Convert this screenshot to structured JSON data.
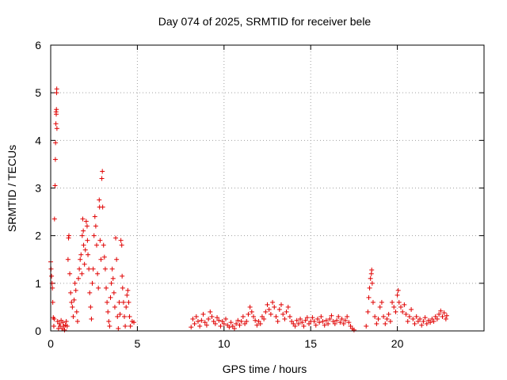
{
  "chart_data": {
    "type": "scatter",
    "title": "Day 074 of 2025, SRMTID for receiver bele",
    "xlabel": "GPS time / hours",
    "ylabel": "SRMTID / TECUs",
    "xlim": [
      0,
      25
    ],
    "ylim": [
      0,
      6
    ],
    "xticks": [
      0,
      5,
      10,
      15,
      20
    ],
    "yticks": [
      0,
      1,
      2,
      3,
      4,
      5,
      6
    ],
    "grid": true,
    "marker": "+",
    "color": "#e00000",
    "series": [
      {
        "name": "SRMTID",
        "points": [
          [
            0.0,
            1.45
          ],
          [
            0.02,
            1.3
          ],
          [
            0.05,
            1.15
          ],
          [
            0.08,
            1.0
          ],
          [
            0.1,
            0.9
          ],
          [
            0.12,
            0.6
          ],
          [
            0.15,
            0.28
          ],
          [
            0.18,
            0.1
          ],
          [
            0.2,
            0.25
          ],
          [
            0.22,
            2.35
          ],
          [
            0.25,
            3.05
          ],
          [
            0.27,
            3.6
          ],
          [
            0.28,
            3.95
          ],
          [
            0.3,
            4.35
          ],
          [
            0.31,
            4.6
          ],
          [
            0.32,
            4.55
          ],
          [
            0.33,
            4.65
          ],
          [
            0.34,
            5.0
          ],
          [
            0.35,
            5.08
          ],
          [
            0.36,
            4.25
          ],
          [
            0.4,
            0.2
          ],
          [
            0.45,
            0.05
          ],
          [
            0.5,
            0.15
          ],
          [
            0.55,
            0.1
          ],
          [
            0.6,
            0.22
          ],
          [
            0.65,
            0.05
          ],
          [
            0.7,
            0.18
          ],
          [
            0.75,
            0.1
          ],
          [
            0.8,
            0.02
          ],
          [
            0.85,
            0.12
          ],
          [
            0.9,
            0.2
          ],
          [
            0.95,
            0.1
          ],
          [
            1.0,
            1.5
          ],
          [
            1.03,
            1.95
          ],
          [
            1.05,
            2.0
          ],
          [
            1.1,
            1.2
          ],
          [
            1.15,
            0.8
          ],
          [
            1.2,
            0.6
          ],
          [
            1.25,
            0.5
          ],
          [
            1.3,
            0.3
          ],
          [
            1.35,
            0.65
          ],
          [
            1.4,
            1.0
          ],
          [
            1.45,
            0.85
          ],
          [
            1.5,
            0.4
          ],
          [
            1.55,
            0.2
          ],
          [
            1.6,
            1.1
          ],
          [
            1.65,
            1.3
          ],
          [
            1.7,
            1.5
          ],
          [
            1.75,
            1.6
          ],
          [
            1.8,
            1.2
          ],
          [
            1.82,
            2.0
          ],
          [
            1.85,
            2.35
          ],
          [
            1.88,
            2.1
          ],
          [
            1.9,
            1.8
          ],
          [
            1.95,
            1.4
          ],
          [
            2.0,
            1.7
          ],
          [
            2.05,
            2.3
          ],
          [
            2.1,
            2.2
          ],
          [
            2.12,
            1.9
          ],
          [
            2.15,
            1.6
          ],
          [
            2.2,
            1.3
          ],
          [
            2.25,
            0.8
          ],
          [
            2.3,
            0.5
          ],
          [
            2.35,
            0.25
          ],
          [
            2.4,
            1.0
          ],
          [
            2.45,
            1.3
          ],
          [
            2.5,
            2.0
          ],
          [
            2.55,
            2.4
          ],
          [
            2.6,
            2.2
          ],
          [
            2.65,
            1.8
          ],
          [
            2.7,
            1.2
          ],
          [
            2.75,
            0.9
          ],
          [
            2.8,
            2.75
          ],
          [
            2.82,
            2.6
          ],
          [
            2.85,
            1.9
          ],
          [
            2.9,
            1.5
          ],
          [
            2.95,
            3.2
          ],
          [
            2.98,
            3.35
          ],
          [
            3.0,
            2.6
          ],
          [
            3.05,
            1.8
          ],
          [
            3.1,
            1.55
          ],
          [
            3.15,
            1.3
          ],
          [
            3.2,
            0.9
          ],
          [
            3.25,
            0.6
          ],
          [
            3.3,
            0.4
          ],
          [
            3.35,
            0.2
          ],
          [
            3.4,
            0.1
          ],
          [
            3.45,
            0.7
          ],
          [
            3.5,
            1.0
          ],
          [
            3.55,
            1.3
          ],
          [
            3.6,
            1.1
          ],
          [
            3.65,
            0.8
          ],
          [
            3.7,
            0.5
          ],
          [
            3.75,
            1.95
          ],
          [
            3.8,
            1.5
          ],
          [
            3.85,
            0.3
          ],
          [
            3.9,
            0.05
          ],
          [
            3.95,
            0.6
          ],
          [
            4.0,
            0.35
          ],
          [
            4.05,
            1.9
          ],
          [
            4.1,
            1.8
          ],
          [
            4.12,
            1.15
          ],
          [
            4.15,
            0.9
          ],
          [
            4.2,
            0.6
          ],
          [
            4.25,
            0.3
          ],
          [
            4.3,
            0.1
          ],
          [
            4.35,
            0.5
          ],
          [
            4.4,
            0.75
          ],
          [
            4.45,
            0.85
          ],
          [
            4.5,
            0.6
          ],
          [
            4.55,
            0.3
          ],
          [
            4.6,
            0.1
          ],
          [
            4.7,
            0.2
          ],
          [
            4.8,
            0.18
          ],
          [
            8.1,
            0.08
          ],
          [
            8.2,
            0.25
          ],
          [
            8.3,
            0.15
          ],
          [
            8.4,
            0.3
          ],
          [
            8.5,
            0.2
          ],
          [
            8.6,
            0.1
          ],
          [
            8.7,
            0.22
          ],
          [
            8.8,
            0.35
          ],
          [
            8.9,
            0.18
          ],
          [
            9.0,
            0.12
          ],
          [
            9.1,
            0.25
          ],
          [
            9.2,
            0.4
          ],
          [
            9.3,
            0.3
          ],
          [
            9.4,
            0.2
          ],
          [
            9.5,
            0.15
          ],
          [
            9.6,
            0.28
          ],
          [
            9.7,
            0.22
          ],
          [
            9.8,
            0.1
          ],
          [
            9.9,
            0.2
          ],
          [
            10.0,
            0.15
          ],
          [
            10.1,
            0.25
          ],
          [
            10.2,
            0.12
          ],
          [
            10.3,
            0.08
          ],
          [
            10.4,
            0.18
          ],
          [
            10.5,
            0.1
          ],
          [
            10.6,
            0.05
          ],
          [
            10.7,
            0.15
          ],
          [
            10.8,
            0.22
          ],
          [
            10.9,
            0.12
          ],
          [
            11.0,
            0.2
          ],
          [
            11.1,
            0.3
          ],
          [
            11.2,
            0.15
          ],
          [
            11.3,
            0.2
          ],
          [
            11.4,
            0.35
          ],
          [
            11.5,
            0.5
          ],
          [
            11.6,
            0.4
          ],
          [
            11.7,
            0.3
          ],
          [
            11.8,
            0.22
          ],
          [
            11.9,
            0.12
          ],
          [
            12.0,
            0.2
          ],
          [
            12.1,
            0.15
          ],
          [
            12.2,
            0.3
          ],
          [
            12.3,
            0.25
          ],
          [
            12.4,
            0.4
          ],
          [
            12.5,
            0.55
          ],
          [
            12.6,
            0.45
          ],
          [
            12.7,
            0.35
          ],
          [
            12.8,
            0.6
          ],
          [
            12.9,
            0.5
          ],
          [
            13.0,
            0.3
          ],
          [
            13.1,
            0.2
          ],
          [
            13.2,
            0.45
          ],
          [
            13.3,
            0.55
          ],
          [
            13.4,
            0.35
          ],
          [
            13.5,
            0.25
          ],
          [
            13.6,
            0.4
          ],
          [
            13.7,
            0.5
          ],
          [
            13.8,
            0.3
          ],
          [
            13.9,
            0.2
          ],
          [
            14.0,
            0.15
          ],
          [
            14.1,
            0.1
          ],
          [
            14.2,
            0.22
          ],
          [
            14.3,
            0.15
          ],
          [
            14.4,
            0.25
          ],
          [
            14.5,
            0.18
          ],
          [
            14.6,
            0.1
          ],
          [
            14.7,
            0.22
          ],
          [
            14.8,
            0.28
          ],
          [
            14.9,
            0.15
          ],
          [
            15.0,
            0.2
          ],
          [
            15.1,
            0.28
          ],
          [
            15.2,
            0.2
          ],
          [
            15.3,
            0.12
          ],
          [
            15.4,
            0.25
          ],
          [
            15.5,
            0.18
          ],
          [
            15.6,
            0.3
          ],
          [
            15.7,
            0.2
          ],
          [
            15.8,
            0.12
          ],
          [
            15.9,
            0.22
          ],
          [
            16.0,
            0.15
          ],
          [
            16.1,
            0.25
          ],
          [
            16.2,
            0.32
          ],
          [
            16.3,
            0.2
          ],
          [
            16.4,
            0.15
          ],
          [
            16.5,
            0.22
          ],
          [
            16.6,
            0.3
          ],
          [
            16.7,
            0.18
          ],
          [
            16.8,
            0.25
          ],
          [
            16.9,
            0.15
          ],
          [
            17.0,
            0.22
          ],
          [
            17.1,
            0.3
          ],
          [
            17.2,
            0.18
          ],
          [
            17.3,
            0.1
          ],
          [
            17.4,
            0.05
          ],
          [
            17.5,
            0.02
          ],
          [
            18.2,
            0.1
          ],
          [
            18.3,
            0.4
          ],
          [
            18.35,
            0.7
          ],
          [
            18.4,
            0.9
          ],
          [
            18.45,
            1.1
          ],
          [
            18.5,
            1.2
          ],
          [
            18.52,
            1.28
          ],
          [
            18.55,
            1.0
          ],
          [
            18.6,
            0.6
          ],
          [
            18.7,
            0.3
          ],
          [
            18.8,
            0.15
          ],
          [
            18.9,
            0.25
          ],
          [
            19.0,
            0.5
          ],
          [
            19.1,
            0.6
          ],
          [
            19.2,
            0.3
          ],
          [
            19.3,
            0.15
          ],
          [
            19.4,
            0.25
          ],
          [
            19.5,
            0.35
          ],
          [
            19.6,
            0.2
          ],
          [
            19.7,
            0.6
          ],
          [
            19.8,
            0.5
          ],
          [
            19.9,
            0.4
          ],
          [
            20.0,
            0.75
          ],
          [
            20.05,
            0.85
          ],
          [
            20.1,
            0.6
          ],
          [
            20.2,
            0.5
          ],
          [
            20.3,
            0.4
          ],
          [
            20.4,
            0.55
          ],
          [
            20.5,
            0.35
          ],
          [
            20.6,
            0.2
          ],
          [
            20.7,
            0.3
          ],
          [
            20.8,
            0.45
          ],
          [
            20.9,
            0.25
          ],
          [
            21.0,
            0.15
          ],
          [
            21.1,
            0.3
          ],
          [
            21.2,
            0.2
          ],
          [
            21.3,
            0.25
          ],
          [
            21.4,
            0.12
          ],
          [
            21.5,
            0.2
          ],
          [
            21.6,
            0.28
          ],
          [
            21.7,
            0.15
          ],
          [
            21.8,
            0.22
          ],
          [
            21.9,
            0.18
          ],
          [
            22.0,
            0.25
          ],
          [
            22.1,
            0.2
          ],
          [
            22.2,
            0.3
          ],
          [
            22.3,
            0.25
          ],
          [
            22.4,
            0.35
          ],
          [
            22.5,
            0.42
          ],
          [
            22.6,
            0.3
          ],
          [
            22.7,
            0.38
          ],
          [
            22.8,
            0.25
          ],
          [
            22.85,
            0.32
          ]
        ]
      }
    ]
  }
}
